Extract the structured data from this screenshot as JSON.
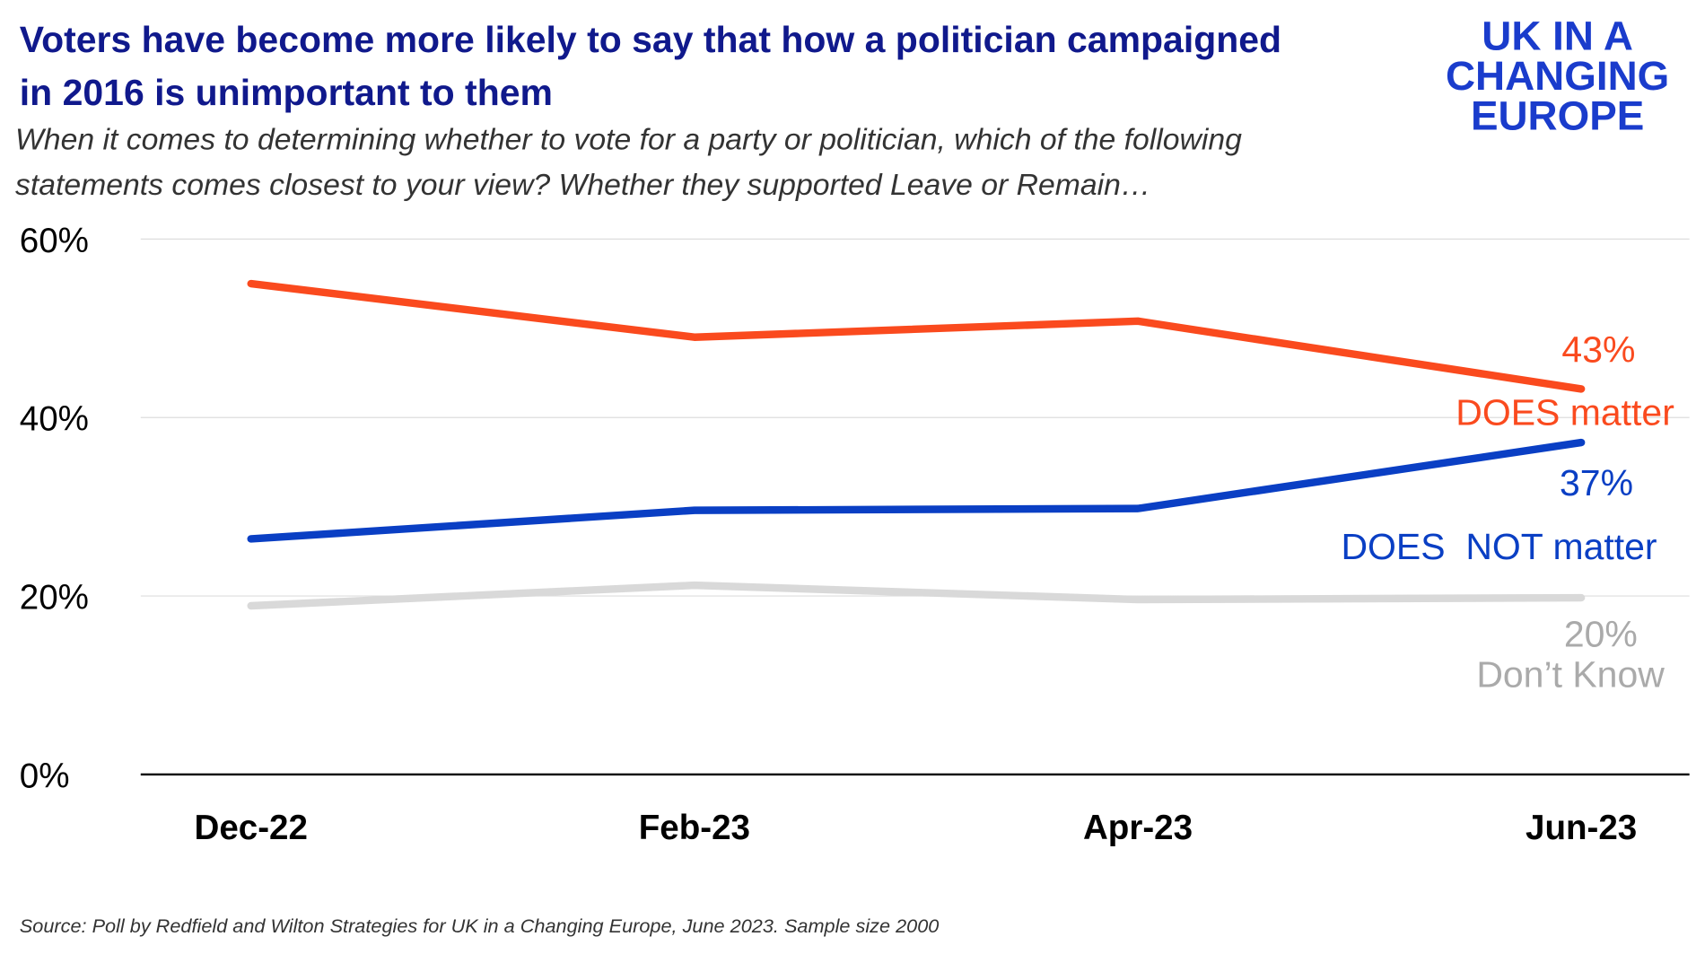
{
  "chart_data": {
    "type": "line",
    "title": [
      "Voters have become more likely to say that how a politician campaigned",
      "in 2016 is unimportant to them"
    ],
    "subtitle": [
      "When it comes to determining whether to vote for a party or politician, which of the following",
      "statements comes closest to your view? Whether they supported Leave or Remain…"
    ],
    "logo": [
      "UK IN A",
      "CHANGING",
      "EUROPE"
    ],
    "source": "Source: Poll by Redfield and Wilton Strategies for UK in a Changing Europe, June 2023. Sample size 2000",
    "categories": [
      "Dec-22",
      "Feb-23",
      "Apr-23",
      "Jun-23"
    ],
    "series": [
      {
        "name": "DOES matter",
        "color": "#fa4a1e",
        "values": [
          55,
          49,
          50.8,
          43.2
        ],
        "value_labels": [
          null,
          null,
          null,
          "43%"
        ]
      },
      {
        "name": "DOES  NOT matter",
        "color": "#0a3fc4",
        "values": [
          26.4,
          29.6,
          29.8,
          37.2
        ],
        "value_labels": [
          null,
          null,
          null,
          "37%"
        ]
      },
      {
        "name": "Don’t Know",
        "color": "#d9d9d9",
        "values": [
          18.9,
          21.2,
          19.6,
          19.8
        ],
        "value_labels": [
          null,
          null,
          null,
          "20%"
        ]
      }
    ],
    "ylim": [
      0,
      60
    ],
    "yticks": [
      {
        "value": 0,
        "label": "0%"
      },
      {
        "value": 20,
        "label": "20%"
      },
      {
        "value": 40,
        "label": "40%"
      },
      {
        "value": 60,
        "label": "60%"
      }
    ],
    "grid": true
  }
}
